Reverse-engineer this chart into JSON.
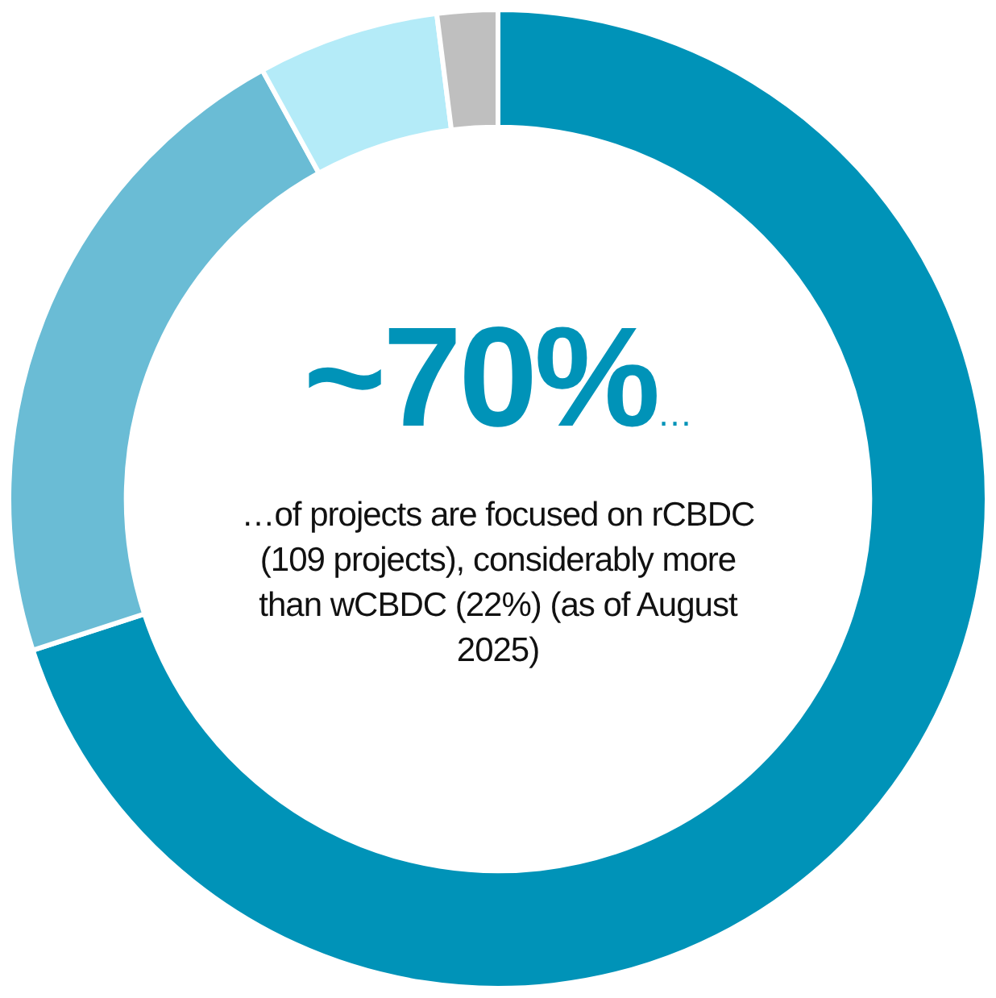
{
  "chart_data": {
    "type": "donut",
    "title": "~70%",
    "categories": [
      null,
      null,
      null,
      null
    ],
    "values": [
      70,
      22,
      6,
      2
    ],
    "colors": [
      "#0093b8",
      "#6abcd5",
      "#b4ebf8",
      "#bfbfbf"
    ],
    "annotations": [
      "…",
      "…of projects are focused on rCBDC (109 projects), considerably more than wCBDC (22%) (as of August 2025)"
    ],
    "legend": false
  }
}
